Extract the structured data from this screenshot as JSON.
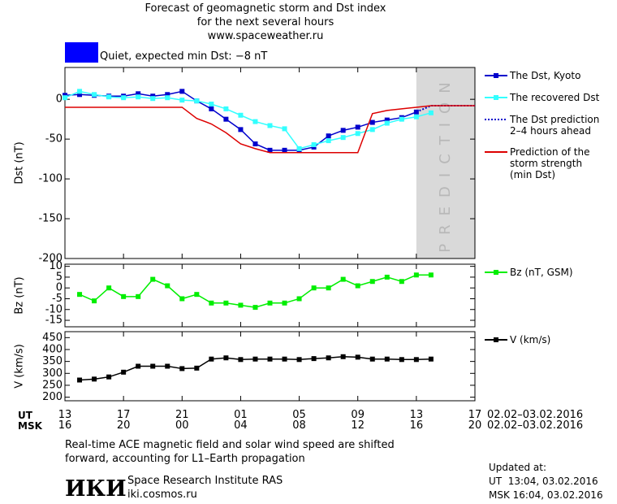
{
  "header": {
    "title_lines": [
      "Forecast of geomagnetic storm and Dst index",
      "for the next several hours",
      "www.spaceweather.ru"
    ],
    "status": "Quiet, expected min Dst: −8 nT",
    "status_color": "#0000ff"
  },
  "chart_data": [
    {
      "type": "line",
      "ylabel": "Dst (nT)",
      "xlim": [
        0,
        28
      ],
      "ylim": [
        -200,
        40
      ],
      "yticks": [
        0,
        -50,
        -100,
        -150,
        -200
      ],
      "shaded_region": {
        "x": [
          24,
          28
        ],
        "label": "PREDICTION",
        "color": "#d9d9d9"
      },
      "series": [
        {
          "name": "The Dst, Kyoto",
          "color": "#0000cc",
          "marker": "square",
          "style": "solid",
          "x": [
            0,
            1,
            2,
            3,
            4,
            5,
            6,
            7,
            8,
            9,
            10,
            11,
            12,
            13,
            14,
            15,
            16,
            17,
            18,
            19,
            20,
            21,
            22,
            23,
            24
          ],
          "values": [
            5,
            6,
            5,
            4,
            4,
            7,
            4,
            6,
            10,
            -2,
            -12,
            -25,
            -38,
            -56,
            -64,
            -64,
            -64,
            -60,
            -46,
            -39,
            -35,
            -29,
            -26,
            -23,
            -16
          ]
        },
        {
          "name": "The recovered Dst",
          "color": "#33ffff",
          "marker": "square",
          "style": "solid",
          "x": [
            0,
            1,
            2,
            3,
            4,
            5,
            6,
            7,
            8,
            9,
            10,
            11,
            12,
            13,
            14,
            15,
            16,
            17,
            18,
            19,
            20,
            21,
            22,
            23,
            24,
            25
          ],
          "values": [
            2,
            10,
            6,
            3,
            2,
            3,
            1,
            2,
            -1,
            -2,
            -6,
            -12,
            -20,
            -28,
            -33,
            -37,
            -62,
            -57,
            -52,
            -48,
            -43,
            -38,
            -30,
            -25,
            -22,
            -17
          ]
        },
        {
          "name": "The Dst prediction\n2–4 hours ahead",
          "color": "#0000cc",
          "marker": "none",
          "style": "dotted",
          "x": [
            24,
            25,
            28
          ],
          "values": [
            -16,
            -8,
            -8
          ]
        },
        {
          "name": "Prediction of the\nstorm strength\n(min Dst)",
          "color": "#dd0000",
          "marker": "none",
          "style": "solid",
          "x": [
            0,
            8,
            9,
            10,
            11,
            12,
            13,
            14,
            20,
            21,
            22,
            23,
            24,
            25,
            28
          ],
          "values": [
            -10,
            -10,
            -24,
            -31,
            -42,
            -56,
            -62,
            -67,
            -67,
            -18,
            -14,
            -12,
            -10,
            -8,
            -8
          ]
        }
      ]
    },
    {
      "type": "line",
      "ylabel": "Bz (nT)",
      "xlim": [
        0,
        28
      ],
      "ylim": [
        -18,
        11
      ],
      "yticks": [
        10,
        5,
        0,
        -5,
        -10,
        -15
      ],
      "series": [
        {
          "name": "Bz (nT, GSM)",
          "color": "#00ee00",
          "marker": "square",
          "style": "solid",
          "x": [
            1,
            2,
            3,
            4,
            5,
            6,
            7,
            8,
            9,
            10,
            11,
            12,
            13,
            14,
            15,
            16,
            17,
            18,
            19,
            20,
            21,
            22,
            23,
            24,
            25
          ],
          "values": [
            -3,
            -6,
            0,
            -4,
            -4,
            4,
            1,
            -5,
            -3,
            -7,
            -7,
            -8,
            -9,
            -7,
            -7,
            -5,
            0,
            0,
            4,
            1,
            3,
            5,
            3,
            6,
            6
          ]
        }
      ]
    },
    {
      "type": "line",
      "ylabel": "V (km/s)",
      "xlim": [
        0,
        28
      ],
      "ylim": [
        185,
        475
      ],
      "yticks": [
        450,
        400,
        350,
        300,
        250,
        200
      ],
      "xticks": [
        {
          "value": 0,
          "label": "13"
        },
        {
          "value": 4,
          "label": "17"
        },
        {
          "value": 8,
          "label": "21"
        },
        {
          "value": 12,
          "label": "01"
        },
        {
          "value": 16,
          "label": "05"
        },
        {
          "value": 20,
          "label": "09"
        },
        {
          "value": 24,
          "label": "13"
        },
        {
          "value": 28,
          "label": "17"
        }
      ],
      "xticks_msk": [
        "16",
        "20",
        "00",
        "04",
        "08",
        "12",
        "16",
        "20"
      ],
      "x_row_labels": [
        "UT",
        "MSK"
      ],
      "date_range": [
        "02.02–03.02.2016",
        "02.02–03.02.2016"
      ],
      "series": [
        {
          "name": "V (km/s)",
          "color": "#000000",
          "marker": "square",
          "style": "solid",
          "x": [
            1,
            2,
            3,
            4,
            5,
            6,
            7,
            8,
            9,
            10,
            11,
            12,
            13,
            14,
            15,
            16,
            17,
            18,
            19,
            20,
            21,
            22,
            23,
            24,
            25
          ],
          "values": [
            272,
            276,
            285,
            305,
            330,
            330,
            330,
            320,
            322,
            360,
            365,
            358,
            360,
            360,
            360,
            358,
            362,
            365,
            370,
            368,
            360,
            360,
            358,
            358,
            360
          ]
        }
      ]
    }
  ],
  "footer": {
    "note_lines": [
      "Real-time ACE magnetic field and solar wind speed are shifted",
      "forward, accounting for L1–Earth propagation"
    ],
    "logo": "ИКИ",
    "institute": "Space Research Institute RAS",
    "website": "iki.cosmos.ru",
    "updated_lines": [
      "Updated at:",
      "UT  13:04, 03.02.2016",
      "MSK 16:04, 03.02.2016"
    ]
  }
}
